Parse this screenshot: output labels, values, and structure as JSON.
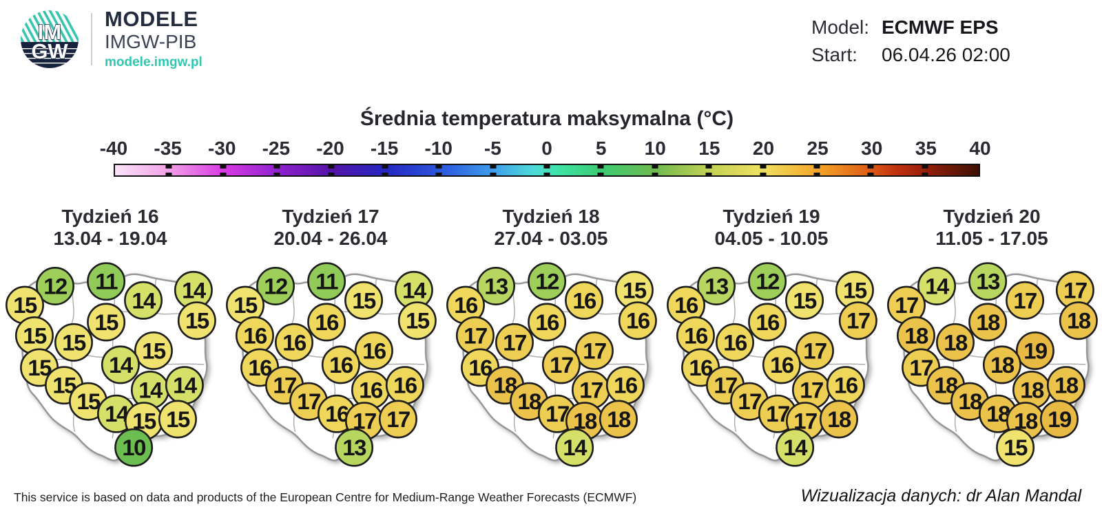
{
  "header": {
    "logo": {
      "top_text": "IM",
      "bottom_text": "GW"
    },
    "brand": {
      "line1": "MODELE",
      "line2": "IMGW-PIB",
      "line3": "modele.imgw.pl"
    },
    "model_label": "Model:",
    "model_value": "ECMWF EPS",
    "start_label": "Start:",
    "start_value": "06.04.26 02:00"
  },
  "colors": {
    "teal": "#35c4ae",
    "navy": "#17233e",
    "title_text": "#25252e"
  },
  "footer": {
    "attribution": "This service is based on data and products of the European Centre for Medium-Range Weather Forecasts (ECMWF)",
    "credit": "Wizualizacja danych: dr Alan Mandal"
  },
  "chart_data": {
    "type": "map",
    "title": "Średnia temperatura maksymalna (°C)",
    "unit": "°C",
    "colorbar": {
      "min": -40,
      "max": 40,
      "step": 5,
      "ticks": [
        "-40",
        "-35",
        "-30",
        "-25",
        "-20",
        "-15",
        "-10",
        "-5",
        "0",
        "5",
        "10",
        "15",
        "20",
        "25",
        "30",
        "35",
        "40"
      ],
      "gradient": [
        [
          0,
          "#F9E3F7"
        ],
        [
          6.25,
          "#F2A0E8"
        ],
        [
          12.5,
          "#D93BE3"
        ],
        [
          18.75,
          "#9122CF"
        ],
        [
          25,
          "#5414A8"
        ],
        [
          31.25,
          "#2526C2"
        ],
        [
          37.5,
          "#2B55DD"
        ],
        [
          43.75,
          "#3E9DEC"
        ],
        [
          48.5,
          "#4EDBD8"
        ],
        [
          51.5,
          "#3EE3A2"
        ],
        [
          56.25,
          "#3BCB72"
        ],
        [
          62.5,
          "#6FB94E"
        ],
        [
          68.75,
          "#C2D155"
        ],
        [
          75,
          "#F0E061"
        ],
        [
          81.25,
          "#F5A629"
        ],
        [
          87.5,
          "#DC5A14"
        ],
        [
          90.6,
          "#C0300E"
        ],
        [
          93.75,
          "#97200C"
        ],
        [
          100,
          "#3F1004"
        ]
      ]
    },
    "temp_colors": {
      "10": "#6CBE50",
      "11": "#90CA58",
      "12": "#9DCE5A",
      "13": "#B6D660",
      "14": "#D5E068",
      "15": "#F0E26E",
      "16": "#EFD75C",
      "17": "#EDCD52",
      "18": "#EBC24A",
      "19": "#E8B943"
    },
    "station_positions": [
      [
        24.2,
        12.7
      ],
      [
        48.1,
        10.5
      ],
      [
        10.0,
        21.6
      ],
      [
        65.5,
        19.4
      ],
      [
        89.0,
        14.6
      ],
      [
        14.5,
        35.9
      ],
      [
        48.1,
        29.6
      ],
      [
        90.6,
        28.9
      ],
      [
        32.9,
        39.1
      ],
      [
        16.8,
        50.9
      ],
      [
        70.3,
        43.0
      ],
      [
        54.8,
        49.6
      ],
      [
        28.4,
        59.2
      ],
      [
        68.7,
        61.4
      ],
      [
        84.8,
        59.2
      ],
      [
        39.7,
        66.8
      ],
      [
        52.9,
        72.6
      ],
      [
        65.8,
        76.0
      ],
      [
        81.6,
        75.1
      ],
      [
        61.0,
        88.4
      ]
    ],
    "weeks": [
      {
        "label": "Tydzień 16",
        "dates": "13.04 - 19.04",
        "values": [
          12,
          11,
          15,
          14,
          14,
          15,
          15,
          15,
          15,
          15,
          15,
          14,
          15,
          14,
          14,
          15,
          14,
          15,
          15,
          10
        ]
      },
      {
        "label": "Tydzień 17",
        "dates": "20.04 - 26.04",
        "values": [
          12,
          11,
          15,
          15,
          14,
          16,
          16,
          15,
          16,
          16,
          16,
          16,
          17,
          16,
          16,
          17,
          16,
          17,
          17,
          13
        ]
      },
      {
        "label": "Tydzień 18",
        "dates": "27.04 - 03.05",
        "values": [
          13,
          12,
          16,
          16,
          15,
          17,
          16,
          16,
          17,
          16,
          17,
          17,
          18,
          17,
          16,
          18,
          17,
          18,
          18,
          14
        ]
      },
      {
        "label": "Tydzień 19",
        "dates": "04.05 - 10.05",
        "values": [
          13,
          12,
          16,
          15,
          15,
          16,
          16,
          17,
          16,
          16,
          17,
          16,
          17,
          17,
          16,
          17,
          17,
          17,
          18,
          14
        ]
      },
      {
        "label": "Tydzień 20",
        "dates": "11.05 - 17.05",
        "values": [
          14,
          13,
          17,
          17,
          17,
          18,
          18,
          18,
          18,
          17,
          19,
          18,
          18,
          18,
          18,
          18,
          18,
          18,
          19,
          15
        ]
      }
    ]
  }
}
